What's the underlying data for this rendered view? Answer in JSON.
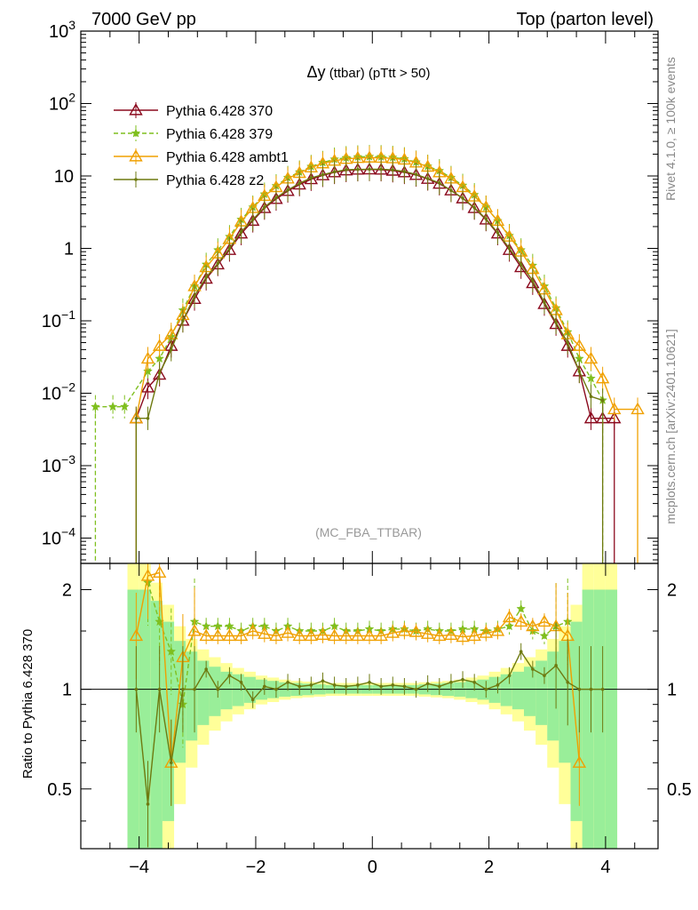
{
  "header": {
    "left": "7000 GeV pp",
    "right": "Top (parton level)"
  },
  "side_labels": {
    "rivet": "Rivet 4.1.0, ≥ 100k events",
    "mcplots": "mcplots.cern.ch [arXiv:2401.10621]"
  },
  "chart_data": {
    "type": "line",
    "title": "Δy (ttbar) (pTtt > 50)",
    "title_symbol": "Δy",
    "title_rest": " (ttbar) (pTtt > 50)",
    "watermark": "(MC_FBA_TTBAR)",
    "xlabel": "",
    "ylabel_ratio": "Ratio to Pythia 6.428 370",
    "xlim": [
      -5.0,
      4.9
    ],
    "main_ylim_log10": [
      -4.35,
      3.0
    ],
    "ratio_ylim": [
      0.33,
      2.4
    ],
    "x_ticks": [
      -4,
      -2,
      0,
      2,
      4
    ],
    "x_tick_labels": [
      "−4",
      "−2",
      "0",
      "2",
      "4"
    ],
    "main_y_ticks": [
      {
        "exp": 3,
        "base": "10",
        "sup": "3"
      },
      {
        "exp": 2,
        "base": "10",
        "sup": "2"
      },
      {
        "exp": 1,
        "base": "10",
        "sup": ""
      },
      {
        "exp": 0,
        "base": "1",
        "sup": ""
      },
      {
        "exp": -1,
        "base": "10",
        "sup": "−1"
      },
      {
        "exp": -2,
        "base": "10",
        "sup": "−2"
      },
      {
        "exp": -3,
        "base": "10",
        "sup": "−3"
      },
      {
        "exp": -4,
        "base": "10",
        "sup": "−4"
      }
    ],
    "ratio_y_ticks": [
      {
        "v": 0.5,
        "label": "0.5"
      },
      {
        "v": 1,
        "label": "1"
      },
      {
        "v": 2,
        "label": "2"
      }
    ],
    "legend": [
      {
        "name": "Pythia 6.428 370",
        "color": "#8b0a1e",
        "dash": "",
        "marker": "triangle-open"
      },
      {
        "name": "Pythia 6.428 379",
        "color": "#7fbf1f",
        "dash": "5,3",
        "marker": "star"
      },
      {
        "name": "Pythia 6.428 ambt1",
        "color": "#f0a000",
        "dash": "",
        "marker": "triangle-open"
      },
      {
        "name": "Pythia 6.428 z2",
        "color": "#6e7a10",
        "dash": "",
        "marker": "dot"
      }
    ],
    "band_inner_color": "#99ee99",
    "band_outer_color": "#ffff99",
    "series": [
      {
        "name": "Pythia 6.428 370",
        "x": [
          -4.05,
          -3.85,
          -3.65,
          -3.45,
          -3.25,
          -3.05,
          -2.85,
          -2.65,
          -2.45,
          -2.25,
          -2.05,
          -1.85,
          -1.65,
          -1.45,
          -1.25,
          -1.05,
          -0.85,
          -0.65,
          -0.45,
          -0.25,
          -0.05,
          0.15,
          0.35,
          0.55,
          0.75,
          0.95,
          1.15,
          1.35,
          1.55,
          1.75,
          1.95,
          2.15,
          2.35,
          2.55,
          2.75,
          2.95,
          3.15,
          3.35,
          3.55,
          3.75,
          3.95,
          4.15
        ],
        "y": [
          0.0045,
          0.012,
          0.018,
          0.045,
          0.1,
          0.2,
          0.38,
          0.6,
          0.95,
          1.6,
          2.4,
          3.6,
          4.8,
          6.2,
          7.6,
          9.0,
          10.2,
          11.2,
          11.9,
          12.2,
          12.3,
          12.2,
          11.8,
          11.2,
          10.3,
          9.1,
          7.8,
          6.3,
          4.9,
          3.6,
          2.5,
          1.6,
          0.95,
          0.55,
          0.33,
          0.17,
          0.09,
          0.045,
          0.02,
          0.0045,
          0.0045,
          0.0045
        ],
        "ratio": [
          1,
          1,
          1,
          1,
          1,
          1,
          1,
          1,
          1,
          1,
          1,
          1,
          1,
          1,
          1,
          1,
          1,
          1,
          1,
          1,
          1,
          1,
          1,
          1,
          1,
          1,
          1,
          1,
          1,
          1,
          1,
          1,
          1,
          1,
          1,
          1,
          1,
          1,
          1,
          1,
          1,
          1
        ]
      },
      {
        "name": "Pythia 6.428 379",
        "x": [
          -4.75,
          -4.45,
          -4.25,
          -3.85,
          -3.65,
          -3.45,
          -3.25,
          -3.05,
          -2.85,
          -2.65,
          -2.45,
          -2.25,
          -2.05,
          -1.85,
          -1.65,
          -1.45,
          -1.25,
          -1.05,
          -0.85,
          -0.65,
          -0.45,
          -0.25,
          -0.05,
          0.15,
          0.35,
          0.55,
          0.75,
          0.95,
          1.15,
          1.35,
          1.55,
          1.75,
          1.95,
          2.15,
          2.35,
          2.55,
          2.75,
          2.95,
          3.15,
          3.35,
          3.55,
          3.75,
          3.95
        ],
        "y": [
          0.0065,
          0.0065,
          0.0065,
          0.02,
          0.03,
          0.06,
          0.14,
          0.3,
          0.6,
          0.95,
          1.45,
          2.5,
          3.7,
          5.6,
          7.3,
          9.5,
          11.3,
          13.5,
          15.3,
          17.0,
          17.8,
          18.3,
          18.5,
          18.4,
          18.0,
          17.2,
          15.5,
          13.6,
          11.8,
          9.5,
          7.4,
          5.5,
          3.7,
          2.4,
          1.5,
          0.95,
          0.58,
          0.3,
          0.15,
          0.07,
          0.03,
          0.016,
          0.008
        ],
        "ratio": [
          null,
          null,
          null,
          2.1,
          1.6,
          1.3,
          0.9,
          1.6,
          1.55,
          1.55,
          1.55,
          1.5,
          1.55,
          1.55,
          1.5,
          1.55,
          1.5,
          1.5,
          1.5,
          1.55,
          1.5,
          1.5,
          1.52,
          1.5,
          1.52,
          1.52,
          1.5,
          1.52,
          1.5,
          1.5,
          1.52,
          1.52,
          1.5,
          1.52,
          1.55,
          1.75,
          1.5,
          1.45,
          1.55,
          1.6,
          null,
          null,
          null
        ]
      },
      {
        "name": "Pythia 6.428 ambt1",
        "x": [
          -4.05,
          -3.85,
          -3.65,
          -3.45,
          -3.25,
          -3.05,
          -2.85,
          -2.65,
          -2.45,
          -2.25,
          -2.05,
          -1.85,
          -1.65,
          -1.45,
          -1.25,
          -1.05,
          -0.85,
          -0.65,
          -0.45,
          -0.25,
          -0.05,
          0.15,
          0.35,
          0.55,
          0.75,
          0.95,
          1.15,
          1.35,
          1.55,
          1.75,
          1.95,
          2.15,
          2.35,
          2.55,
          2.75,
          2.95,
          3.15,
          3.35,
          3.55,
          3.75,
          3.95,
          4.15,
          4.55
        ],
        "y": [
          0.0045,
          0.03,
          0.045,
          0.065,
          0.12,
          0.3,
          0.55,
          0.85,
          1.35,
          2.35,
          3.6,
          5.3,
          7.0,
          9.2,
          11.0,
          13.1,
          14.9,
          16.2,
          17.2,
          17.7,
          17.9,
          17.8,
          17.5,
          16.8,
          15.3,
          13.4,
          11.2,
          9.2,
          7.0,
          5.2,
          3.7,
          2.4,
          1.45,
          0.9,
          0.52,
          0.27,
          0.14,
          0.065,
          0.045,
          0.03,
          0.016,
          0.006,
          0.006
        ],
        "ratio": [
          1.45,
          2.2,
          2.25,
          0.6,
          1.25,
          1.5,
          1.45,
          1.45,
          1.45,
          1.45,
          1.5,
          1.47,
          1.45,
          1.48,
          1.45,
          1.45,
          1.46,
          1.45,
          1.45,
          1.45,
          1.45,
          1.45,
          1.48,
          1.5,
          1.49,
          1.47,
          1.45,
          1.46,
          1.44,
          1.45,
          1.48,
          1.5,
          1.65,
          1.6,
          1.55,
          1.6,
          1.55,
          1.45,
          0.6,
          null,
          null,
          null,
          null
        ]
      },
      {
        "name": "Pythia 6.428 z2",
        "x": [
          -4.05,
          -3.85,
          -3.65,
          -3.45,
          -3.25,
          -3.05,
          -2.85,
          -2.65,
          -2.45,
          -2.25,
          -2.05,
          -1.85,
          -1.65,
          -1.45,
          -1.25,
          -1.05,
          -0.85,
          -0.65,
          -0.45,
          -0.25,
          -0.05,
          0.15,
          0.35,
          0.55,
          0.75,
          0.95,
          1.15,
          1.35,
          1.55,
          1.75,
          1.95,
          2.15,
          2.35,
          2.55,
          2.75,
          2.95,
          3.15,
          3.35,
          3.55,
          3.75,
          3.95
        ],
        "y": [
          0.0045,
          0.0045,
          0.019,
          0.04,
          0.1,
          0.22,
          0.4,
          0.62,
          1.0,
          1.7,
          2.5,
          3.7,
          5.0,
          6.4,
          7.9,
          9.4,
          10.4,
          11.4,
          12.2,
          12.3,
          12.4,
          12.4,
          12.1,
          11.5,
          10.5,
          9.2,
          8.0,
          6.3,
          4.95,
          3.65,
          2.55,
          1.65,
          1.0,
          0.6,
          0.36,
          0.18,
          0.095,
          0.05,
          0.02,
          0.009,
          0.008
        ],
        "ratio": [
          1.0,
          0.45,
          1.0,
          0.6,
          1.0,
          1.0,
          1.15,
          1.0,
          1.1,
          1.05,
          0.93,
          1.02,
          1.0,
          1.05,
          1.02,
          1.03,
          1.06,
          1.03,
          1.02,
          1.03,
          1.05,
          1.02,
          1.03,
          1.02,
          1.0,
          1.04,
          1.02,
          1.05,
          1.07,
          1.05,
          1.0,
          1.03,
          1.1,
          1.3,
          1.15,
          1.1,
          1.18,
          1.05,
          1.0,
          1.0,
          1.0
        ]
      }
    ],
    "band": {
      "x": [
        -4.2,
        -4.0,
        -3.8,
        -3.6,
        -3.4,
        -3.2,
        -3.0,
        -2.8,
        -2.6,
        -2.4,
        -2.2,
        -2.0,
        -1.8,
        -1.6,
        -1.4,
        -1.2,
        -1.0,
        -0.8,
        -0.6,
        -0.4,
        -0.2,
        0.0,
        0.2,
        0.4,
        0.6,
        0.8,
        1.0,
        1.2,
        1.4,
        1.6,
        1.8,
        2.0,
        2.2,
        2.4,
        2.6,
        2.8,
        3.0,
        3.2,
        3.4,
        3.6,
        3.8,
        4.0,
        4.2
      ],
      "inner": [
        1.0,
        1.0,
        0.85,
        0.6,
        0.4,
        0.3,
        0.22,
        0.17,
        0.13,
        0.11,
        0.09,
        0.07,
        0.06,
        0.05,
        0.045,
        0.04,
        0.035,
        0.03,
        0.03,
        0.03,
        0.03,
        0.03,
        0.03,
        0.03,
        0.03,
        0.035,
        0.04,
        0.045,
        0.05,
        0.06,
        0.07,
        0.09,
        0.11,
        0.13,
        0.17,
        0.22,
        0.3,
        0.4,
        0.6,
        1.0,
        1.0,
        1.0
      ],
      "outer": [
        1.4,
        1.4,
        1.1,
        0.8,
        0.55,
        0.42,
        0.32,
        0.25,
        0.2,
        0.16,
        0.13,
        0.1,
        0.085,
        0.07,
        0.06,
        0.055,
        0.05,
        0.045,
        0.045,
        0.045,
        0.045,
        0.045,
        0.045,
        0.045,
        0.045,
        0.05,
        0.055,
        0.06,
        0.07,
        0.085,
        0.1,
        0.13,
        0.16,
        0.2,
        0.25,
        0.32,
        0.42,
        0.55,
        0.8,
        1.4,
        1.4,
        1.4
      ]
    }
  }
}
